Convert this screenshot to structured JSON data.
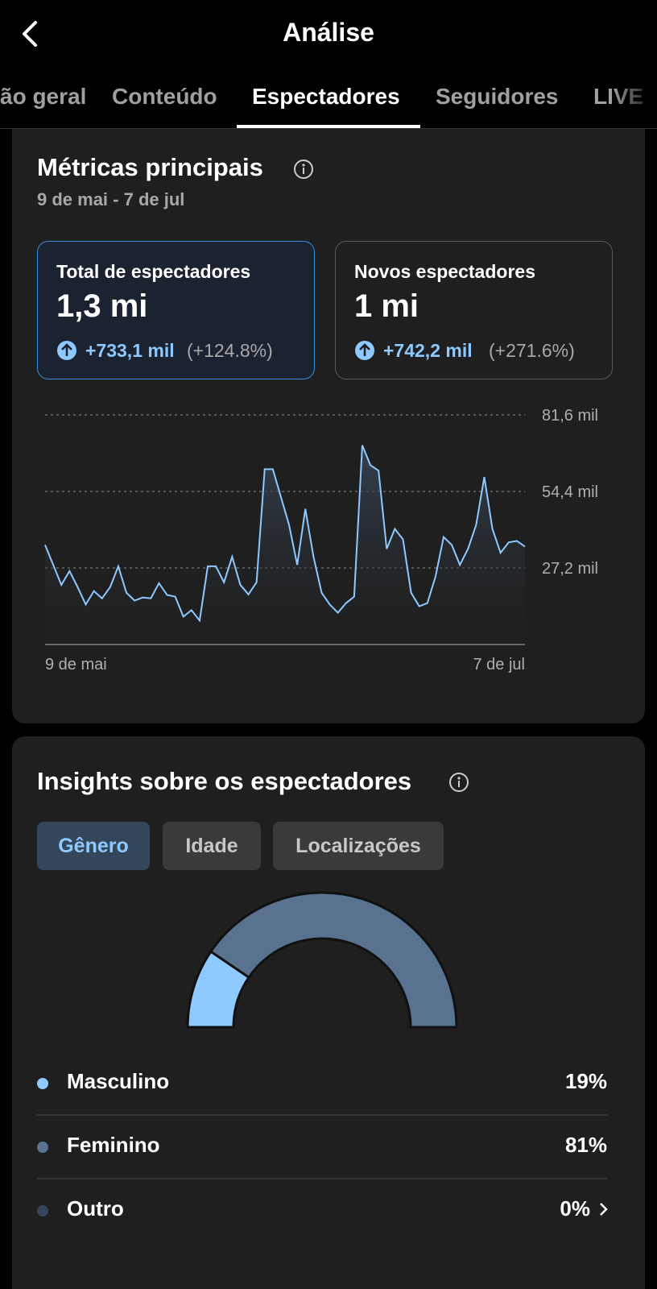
{
  "header": {
    "title": "Análise"
  },
  "tabs": [
    "ão geral",
    "Conteúdo",
    "Espectadores",
    "Seguidores",
    "LIVE"
  ],
  "metrics": {
    "title": "Métricas principais",
    "date_range": "9 de mai - 7 de jul",
    "cards": [
      {
        "label": "Total de espectadores",
        "value": "1,3 mi",
        "change": "+733,1 mil",
        "percent": "(+124.8%)"
      },
      {
        "label": "Novos espectadores",
        "value": "1 mi",
        "change": "+742,2 mil",
        "percent": "(+271.6%)"
      }
    ],
    "chart": {
      "type": "line",
      "color": "#8ec9ff",
      "categories": [
        "9 de mai",
        null,
        null,
        null,
        null,
        null,
        null,
        null,
        null,
        null,
        null,
        null,
        null,
        null,
        null,
        null,
        null,
        null,
        null,
        null,
        null,
        null,
        null,
        null,
        null,
        null,
        null,
        null,
        null,
        null,
        null,
        null,
        null,
        null,
        null,
        null,
        null,
        null,
        null,
        null,
        null,
        null,
        null,
        null,
        null,
        null,
        null,
        null,
        null,
        null,
        null,
        null,
        null,
        null,
        null,
        null,
        null,
        null,
        null,
        "7 de jul"
      ],
      "values": [
        35.4,
        28.3,
        21.2,
        26.1,
        20.4,
        14.2,
        19.0,
        16.4,
        20.4,
        27.8,
        18.4,
        15.6,
        16.7,
        16.4,
        21.8,
        17.6,
        17.0,
        9.9,
        12.2,
        8.5,
        27.8,
        27.8,
        22.1,
        31.2,
        21.2,
        17.8,
        22.1,
        62.3,
        62.3,
        52.4,
        42.5,
        28.3,
        48.2,
        31.2,
        18.4,
        14.2,
        11.3,
        14.7,
        17.0,
        70.8,
        63.7,
        61.8,
        34.0,
        41.1,
        37.4,
        18.4,
        13.6,
        14.7,
        24.1,
        38.2,
        35.4,
        28.3,
        34.0,
        42.5,
        59.5,
        41.1,
        32.6,
        36.3,
        36.8,
        34.8
      ],
      "ylim": [
        0,
        81.6
      ],
      "yticks": [
        {
          "value": 27.2,
          "label": "27,2 mil"
        },
        {
          "value": 54.4,
          "label": "54,4 mil"
        },
        {
          "value": 81.6,
          "label": "81,6 mil"
        }
      ],
      "grid": true
    }
  },
  "insights": {
    "title": "Insights sobre os espectadores",
    "filters": [
      "Gênero",
      "Idade",
      "Localizações"
    ],
    "chart": {
      "type": "pie",
      "categories": [
        "Masculino",
        "Feminino",
        "Outro"
      ],
      "values": [
        19,
        81,
        0
      ],
      "value_labels": [
        "19%",
        "81%",
        "0%"
      ],
      "colors": [
        "#8ec9ff",
        "#58728f",
        "#34465a"
      ]
    }
  }
}
